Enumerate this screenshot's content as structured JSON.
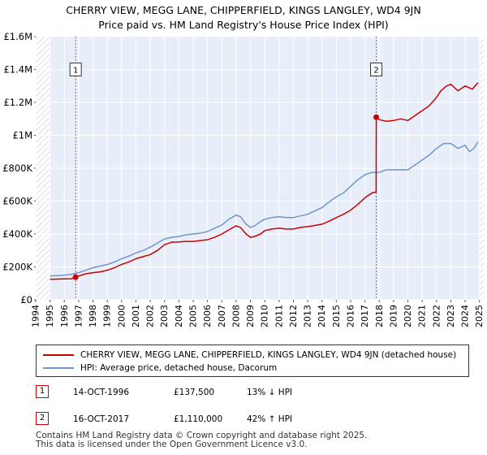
{
  "title_line1": "CHERRY VIEW, MEGG LANE, CHIPPERFIELD, KINGS LANGLEY, WD4 9JN",
  "title_line2": "Price paid vs. HM Land Registry's House Price Index (HPI)",
  "colors": {
    "property": "#cc0000",
    "hpi": "#6f96c8",
    "plot_bg": "#e8eef9",
    "grid": "#ffffff",
    "marker_line": "#dd4444",
    "hatch": "#c8c8c8"
  },
  "legend": {
    "property_label": "CHERRY VIEW, MEGG LANE, CHIPPERFIELD, KINGS LANGLEY, WD4 9JN (detached house)",
    "hpi_label": "HPI: Average price, detached house, Dacorum"
  },
  "transactions": [
    {
      "num": "1",
      "date": "14-OCT-1996",
      "price": "£137,500",
      "hpi": "13% ↓ HPI"
    },
    {
      "num": "2",
      "date": "16-OCT-2017",
      "price": "£1,110,000",
      "hpi": "42% ↑ HPI"
    }
  ],
  "footer_line1": "Contains HM Land Registry data © Crown copyright and database right 2025.",
  "footer_line2": "This data is licensed under the Open Government Licence v3.0.",
  "chart_data": {
    "type": "line",
    "title": "CHERRY VIEW, MEGG LANE, CHIPPERFIELD, KINGS LANGLEY, WD4 9JN — Price paid vs. HM Land Registry's House Price Index (HPI)",
    "xlabel": "",
    "ylabel": "",
    "xlim": [
      1994,
      2025.3
    ],
    "ylim": [
      0,
      1600000
    ],
    "x_ticks": [
      1994,
      1995,
      1996,
      1997,
      1998,
      1999,
      2000,
      2001,
      2002,
      2003,
      2004,
      2005,
      2006,
      2007,
      2008,
      2009,
      2010,
      2011,
      2012,
      2013,
      2014,
      2015,
      2016,
      2017,
      2018,
      2019,
      2020,
      2021,
      2022,
      2023,
      2024,
      2025
    ],
    "y_ticks": [
      {
        "value": 0,
        "label": "£0"
      },
      {
        "value": 200000,
        "label": "£200K"
      },
      {
        "value": 400000,
        "label": "£400K"
      },
      {
        "value": 600000,
        "label": "£600K"
      },
      {
        "value": 800000,
        "label": "£800K"
      },
      {
        "value": 1000000,
        "label": "£1M"
      },
      {
        "value": 1200000,
        "label": "£1.2M"
      },
      {
        "value": 1400000,
        "label": "£1.4M"
      },
      {
        "value": 1600000,
        "label": "£1.6M"
      }
    ],
    "hatched_ranges": [
      [
        1994,
        1995
      ],
      [
        2025,
        2025.3
      ]
    ],
    "sale_markers": [
      {
        "label": "1",
        "x": 1996.79,
        "y": 137500
      },
      {
        "label": "2",
        "x": 2017.79,
        "y": 1110000
      }
    ],
    "series": [
      {
        "name": "CHERRY VIEW, MEGG LANE, CHIPPERFIELD, KINGS LANGLEY, WD4 9JN (detached house)",
        "x": [
          1995.0,
          1995.5,
          1996.0,
          1996.5,
          1996.79,
          1997.0,
          1997.5,
          1998.0,
          1998.5,
          1999.0,
          1999.5,
          2000.0,
          2000.5,
          2001.0,
          2001.5,
          2002.0,
          2002.5,
          2003.0,
          2003.5,
          2004.0,
          2004.5,
          2005.0,
          2005.5,
          2006.0,
          2006.5,
          2007.0,
          2007.5,
          2008.0,
          2008.3,
          2008.7,
          2009.0,
          2009.3,
          2009.7,
          2010.0,
          2010.5,
          2011.0,
          2011.5,
          2012.0,
          2012.5,
          2013.0,
          2013.5,
          2014.0,
          2014.5,
          2015.0,
          2015.5,
          2016.0,
          2016.5,
          2017.0,
          2017.5,
          2017.78,
          2017.79,
          2018.0,
          2018.5,
          2019.0,
          2019.5,
          2020.0,
          2020.5,
          2021.0,
          2021.5,
          2022.0,
          2022.3,
          2022.7,
          2023.0,
          2023.5,
          2024.0,
          2024.5,
          2024.9
        ],
        "y": [
          125000,
          126000,
          127000,
          128000,
          137500,
          145000,
          158000,
          165000,
          170000,
          180000,
          195000,
          215000,
          230000,
          250000,
          262000,
          275000,
          300000,
          335000,
          350000,
          352000,
          355000,
          355000,
          360000,
          365000,
          380000,
          400000,
          425000,
          450000,
          440000,
          400000,
          380000,
          385000,
          400000,
          420000,
          430000,
          435000,
          430000,
          430000,
          440000,
          445000,
          452000,
          460000,
          478000,
          500000,
          520000,
          545000,
          580000,
          620000,
          650000,
          655000,
          1110000,
          1095000,
          1085000,
          1090000,
          1100000,
          1090000,
          1120000,
          1150000,
          1180000,
          1230000,
          1270000,
          1300000,
          1310000,
          1270000,
          1300000,
          1280000,
          1320000
        ]
      },
      {
        "name": "HPI: Average price, detached house, Dacorum",
        "x": [
          1995.0,
          1995.5,
          1996.0,
          1996.5,
          1997.0,
          1997.5,
          1998.0,
          1998.5,
          1999.0,
          1999.5,
          2000.0,
          2000.5,
          2001.0,
          2001.5,
          2002.0,
          2002.5,
          2003.0,
          2003.5,
          2004.0,
          2004.5,
          2005.0,
          2005.5,
          2006.0,
          2006.5,
          2007.0,
          2007.5,
          2008.0,
          2008.3,
          2008.7,
          2009.0,
          2009.3,
          2009.7,
          2010.0,
          2010.5,
          2011.0,
          2011.5,
          2012.0,
          2012.5,
          2013.0,
          2013.5,
          2014.0,
          2014.5,
          2015.0,
          2015.5,
          2016.0,
          2016.5,
          2017.0,
          2017.5,
          2018.0,
          2018.5,
          2019.0,
          2019.5,
          2020.0,
          2020.5,
          2021.0,
          2021.5,
          2022.0,
          2022.5,
          2023.0,
          2023.5,
          2024.0,
          2024.3,
          2024.6,
          2024.9
        ],
        "y": [
          145000,
          147000,
          150000,
          155000,
          165000,
          180000,
          195000,
          205000,
          215000,
          230000,
          250000,
          265000,
          285000,
          300000,
          320000,
          345000,
          370000,
          380000,
          385000,
          395000,
          400000,
          405000,
          415000,
          435000,
          455000,
          490000,
          515000,
          505000,
          460000,
          440000,
          450000,
          475000,
          490000,
          500000,
          505000,
          500000,
          500000,
          510000,
          520000,
          540000,
          560000,
          595000,
          625000,
          650000,
          690000,
          730000,
          760000,
          775000,
          775000,
          790000,
          790000,
          790000,
          790000,
          820000,
          850000,
          880000,
          920000,
          950000,
          950000,
          920000,
          940000,
          900000,
          920000,
          960000
        ]
      }
    ]
  }
}
